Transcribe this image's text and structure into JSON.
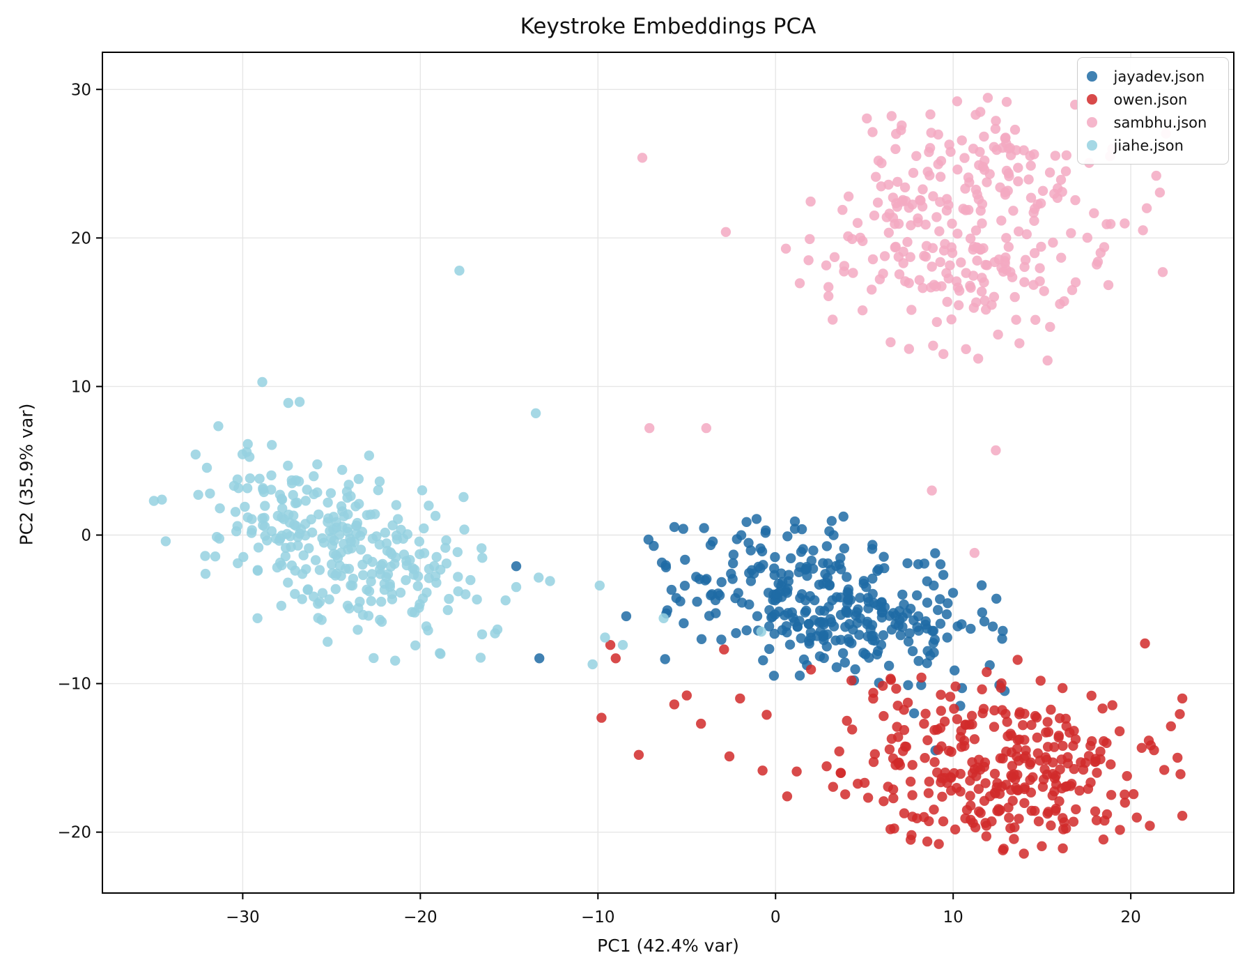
{
  "chart_data": {
    "type": "scatter",
    "title": "Keystroke Embeddings PCA",
    "xlabel": "PC1 (42.4% var)",
    "ylabel": "PC2 (35.9% var)",
    "xlim": [
      -37.9,
      25.8
    ],
    "ylim": [
      -24.1,
      32.5
    ],
    "xticks": [
      -30,
      -20,
      -10,
      0,
      10,
      20
    ],
    "yticks": [
      -20,
      -10,
      0,
      10,
      20,
      30
    ],
    "grid": true,
    "grid_color": "#e6e6e6",
    "spine_color": "#000000",
    "legend": {
      "position": "upper right",
      "labels": [
        "jayadev.json",
        "owen.json",
        "sambhu.json",
        "jiahe.json"
      ]
    },
    "marker": {
      "radius_px": 7.2,
      "opacity": 0.85
    },
    "series": [
      {
        "name": "jayadev.json",
        "color": "#1f6ba5",
        "cluster": {
          "n": 320,
          "seed": 7,
          "center": [
            3.3,
            -4.4
          ],
          "std": [
            4.5,
            2.5
          ],
          "corr": -0.32,
          "xrange": [
            -10.2,
            13.4
          ],
          "yrange": [
            -10.6,
            2.4
          ]
        },
        "outliers": [
          [
            -14.6,
            -2.1
          ],
          [
            -13.3,
            -8.3
          ],
          [
            8.2,
            -10.1
          ],
          [
            10.5,
            -10.3
          ],
          [
            12.6,
            -10.1
          ],
          [
            12.9,
            -10.5
          ],
          [
            10.4,
            -11.5
          ],
          [
            7.8,
            -12.0
          ],
          [
            9.0,
            -14.5
          ]
        ]
      },
      {
        "name": "owen.json",
        "color": "#d12a2a",
        "cluster": {
          "n": 315,
          "seed": 13,
          "center": [
            12.3,
            -15.8
          ],
          "std": [
            4.7,
            2.9
          ],
          "corr": -0.18,
          "xrange": [
            -5.6,
            23.2
          ],
          "yrange": [
            -21.8,
            -8.2
          ]
        },
        "outliers": [
          [
            -9.3,
            -7.4
          ],
          [
            -9.0,
            -8.3
          ],
          [
            -9.8,
            -12.3
          ],
          [
            -7.7,
            -14.8
          ],
          [
            -5.7,
            -11.4
          ],
          [
            -5.0,
            -10.8
          ],
          [
            -4.2,
            -12.7
          ],
          [
            -2.9,
            -7.7
          ],
          [
            -2.0,
            -11.0
          ],
          [
            -0.5,
            -12.1
          ],
          [
            -2.6,
            -14.9
          ],
          [
            20.8,
            -7.3
          ],
          [
            22.9,
            -11.0
          ],
          [
            22.8,
            -16.1
          ],
          [
            22.9,
            -18.9
          ]
        ]
      },
      {
        "name": "sambhu.json",
        "color": "#f3a9c2",
        "cluster": {
          "n": 285,
          "seed": 21,
          "center": [
            10.9,
            20.9
          ],
          "std": [
            4.2,
            4.1
          ],
          "corr": 0.05,
          "xrange": [
            0.4,
            22.4
          ],
          "yrange": [
            9.3,
            30.1
          ]
        },
        "outliers": [
          [
            -7.5,
            25.4
          ],
          [
            -2.8,
            20.4
          ],
          [
            -7.1,
            7.2
          ],
          [
            -3.9,
            7.2
          ],
          [
            8.8,
            3.0
          ],
          [
            12.4,
            5.7
          ],
          [
            11.2,
            -1.2
          ],
          [
            18.3,
            19.0
          ],
          [
            20.9,
            22.0
          ],
          [
            21.8,
            17.7
          ]
        ]
      },
      {
        "name": "jiahe.json",
        "color": "#95d1e0",
        "cluster": {
          "n": 295,
          "seed": 5,
          "center": [
            -24.3,
            -0.9
          ],
          "std": [
            3.9,
            3.1
          ],
          "corr": -0.48,
          "xrange": [
            -35.2,
            -11.9
          ],
          "yrange": [
            -8.9,
            10.4
          ]
        },
        "outliers": [
          [
            -35.0,
            2.3
          ],
          [
            -28.9,
            10.3
          ],
          [
            -17.8,
            17.8
          ],
          [
            -13.5,
            8.2
          ],
          [
            -15.2,
            -4.4
          ],
          [
            -14.6,
            -3.5
          ],
          [
            -12.7,
            -3.1
          ],
          [
            -9.9,
            -3.4
          ],
          [
            -9.6,
            -6.9
          ],
          [
            -8.6,
            -7.4
          ],
          [
            -10.3,
            -8.7
          ],
          [
            -6.3,
            -5.6
          ],
          [
            -0.8,
            -6.5
          ]
        ]
      }
    ]
  }
}
